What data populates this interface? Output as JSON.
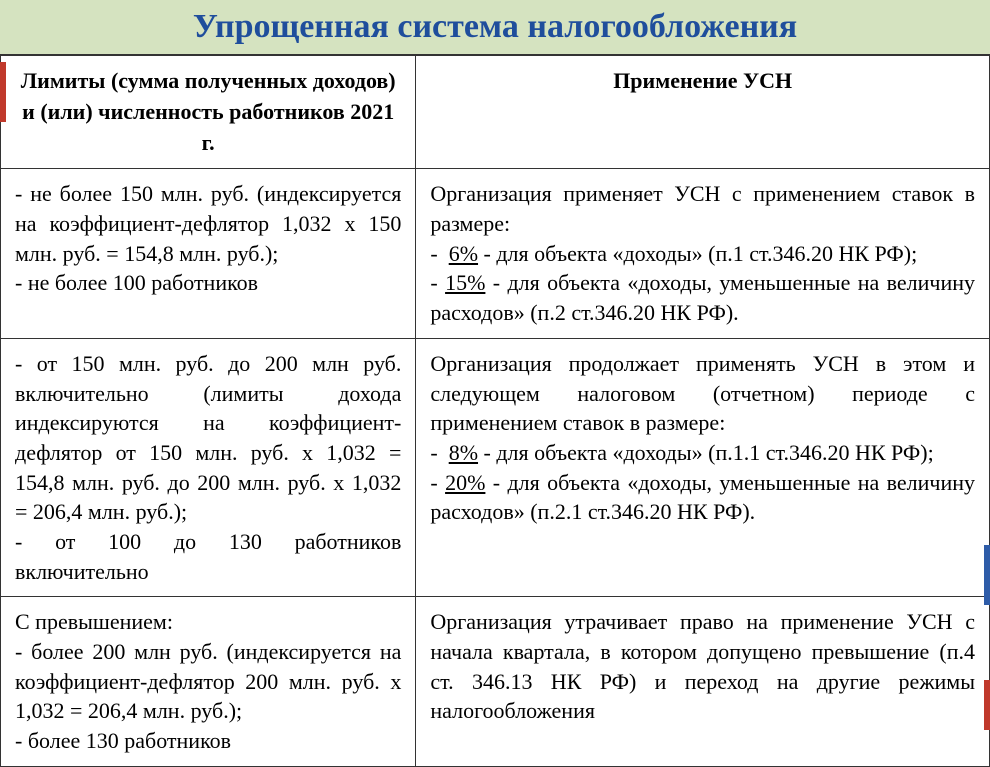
{
  "title": "Упрощенная система налогообложения",
  "colors": {
    "title_bg": "#d5e3c0",
    "title_text": "#1f4e9c",
    "border": "#333333",
    "accent_red": "#c0392b",
    "accent_blue": "#2e5ca8"
  },
  "typography": {
    "font_family": "Times New Roman",
    "title_size": 34,
    "body_size": 22
  },
  "headers": {
    "left": "Лимиты (сумма полученных доходов) и (или) численность работников 2021 г.",
    "right": "Применение УСН"
  },
  "rows": [
    {
      "left_lines": [
        "- не более 150 млн. руб. (индексируется на коэффициент-дефлятор 1,032 х 150 млн. руб. = 154,8 млн. руб.);",
        "- не более 100 работников"
      ],
      "right_intro": "Организация применяет УСН с применением ставок в размере:",
      "right_items": [
        {
          "rate": "6%",
          "text": " - для объекта «доходы» (п.1 ст.346.20 НК РФ);"
        },
        {
          "rate": "15%",
          "text": " - для объекта «доходы, уменьшенные на величину расходов» (п.2 ст.346.20 НК РФ)."
        }
      ]
    },
    {
      "left_lines": [
        "- от 150 млн. руб. до 200 млн руб. включительно (лимиты дохода индексируются на коэффициент-дефлятор от 150 млн. руб. х 1,032 = 154,8 млн. руб. до 200 млн. руб. х 1,032 = 206,4 млн. руб.);",
        "- от 100 до 130 работников включительно"
      ],
      "right_intro": "Организация продолжает применять УСН в этом и следующем налоговом (отчетном) периоде с применением ставок в размере:",
      "right_items": [
        {
          "rate": "8%",
          "text": " - для объекта «доходы» (п.1.1  ст.346.20 НК РФ);"
        },
        {
          "rate": "20%",
          "text": " - для объекта «доходы, уменьшенные на величину расходов» (п.2.1 ст.346.20 НК РФ)."
        }
      ]
    },
    {
      "left_lines": [
        "С превышением:",
        "- более 200 млн руб. (индексируется на коэффициент-дефлятор 200 млн. руб. х 1,032 = 206,4 млн. руб.);",
        "- более 130 работников"
      ],
      "right_plain": "Организация утрачивает право на применение УСН с начала квартала, в котором допущено превышение (п.4 ст. 346.13 НК РФ) и переход на другие режимы налогообложения"
    }
  ]
}
